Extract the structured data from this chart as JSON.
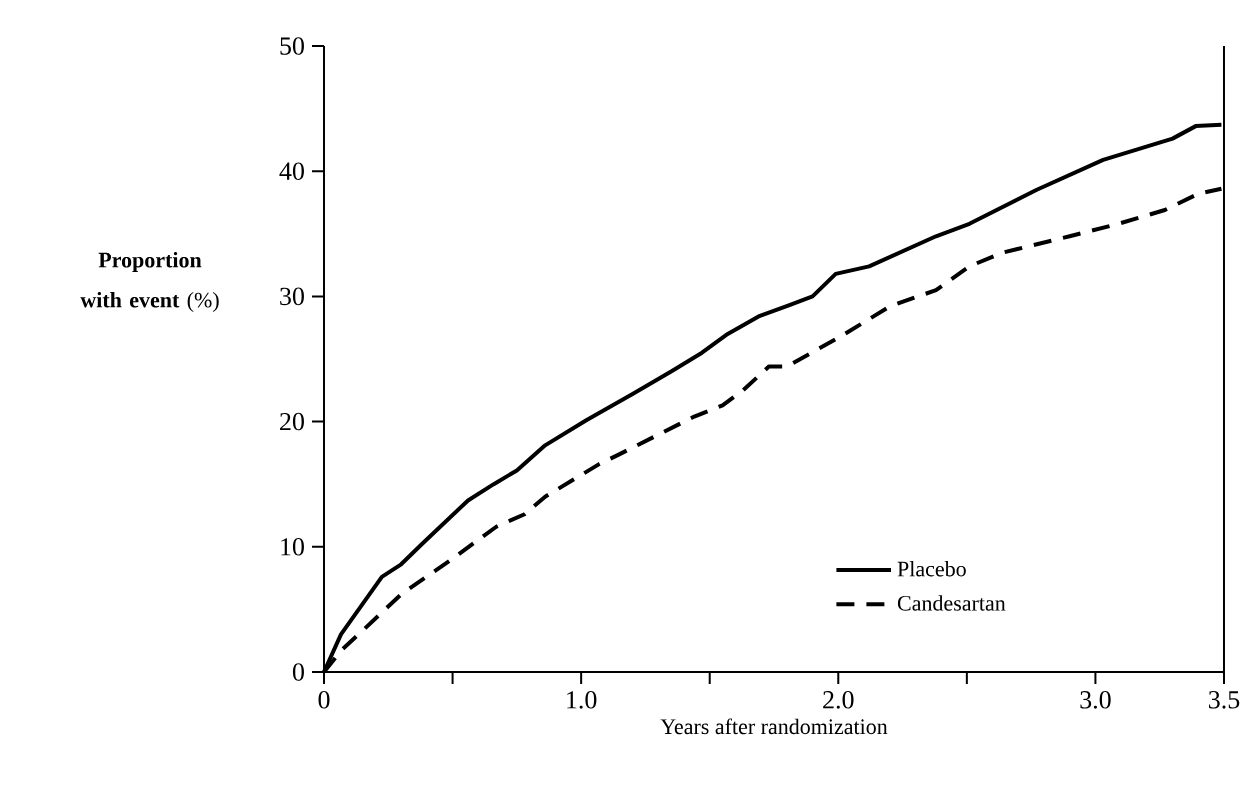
{
  "chart_data": {
    "type": "line",
    "xlabel": "Years after randomization",
    "ylabel": "**Proportion with event** (%)",
    "xlim": [
      0,
      3.5
    ],
    "ylim": [
      0,
      50
    ],
    "xticks": [
      0,
      {
        "value": 0.5,
        "label": null
      },
      {
        "value": 1,
        "label": "1.0"
      },
      {
        "value": 1.5,
        "label": null
      },
      {
        "value": 2,
        "label": "2.0"
      },
      {
        "value": 2.5,
        "label": null
      },
      {
        "value": 3,
        "label": "3.0"
      },
      3.5
    ],
    "yticks": [
      0,
      10,
      20,
      30,
      40,
      50
    ],
    "legend": "bottom right",
    "grid": false,
    "marker": "none",
    "series": [
      {
        "name": "Placebo",
        "color": "#000000",
        "line_style": "solid",
        "x": [
          0,
          0.066,
          0.225,
          0.3,
          0.38,
          0.56,
          0.66,
          0.75,
          0.86,
          1.02,
          1.2,
          1.35,
          1.47,
          1.57,
          1.69,
          1.81,
          1.9,
          1.99,
          2.12,
          2.38,
          2.51,
          2.77,
          3.03,
          3.3,
          3.39,
          3.49
        ],
        "values": [
          0,
          3.0,
          7.6,
          8.6,
          10.2,
          13.7,
          15.0,
          16.1,
          18.1,
          20.1,
          22.2,
          24.0,
          25.5,
          27.0,
          28.4,
          29.3,
          30.0,
          31.8,
          32.4,
          34.8,
          35.8,
          38.5,
          40.9,
          42.6,
          43.6,
          43.7
        ]
      },
      {
        "name": "Candesartan",
        "color": "#000000",
        "line_style": "dashed",
        "x": [
          0,
          0.066,
          0.15,
          0.3,
          0.49,
          0.67,
          0.78,
          0.86,
          1.07,
          1.15,
          1.44,
          1.55,
          1.63,
          1.73,
          1.8,
          2.01,
          2.2,
          2.38,
          2.51,
          2.64,
          2.9,
          3.09,
          3.27,
          3.4,
          3.49
        ],
        "values": [
          0,
          1.7,
          3.3,
          6.2,
          8.9,
          11.6,
          12.6,
          14.0,
          16.6,
          17.4,
          20.4,
          21.3,
          22.5,
          24.4,
          24.4,
          26.8,
          29.2,
          30.5,
          32.4,
          33.5,
          34.8,
          35.8,
          36.9,
          38.2,
          38.6
        ]
      }
    ]
  }
}
